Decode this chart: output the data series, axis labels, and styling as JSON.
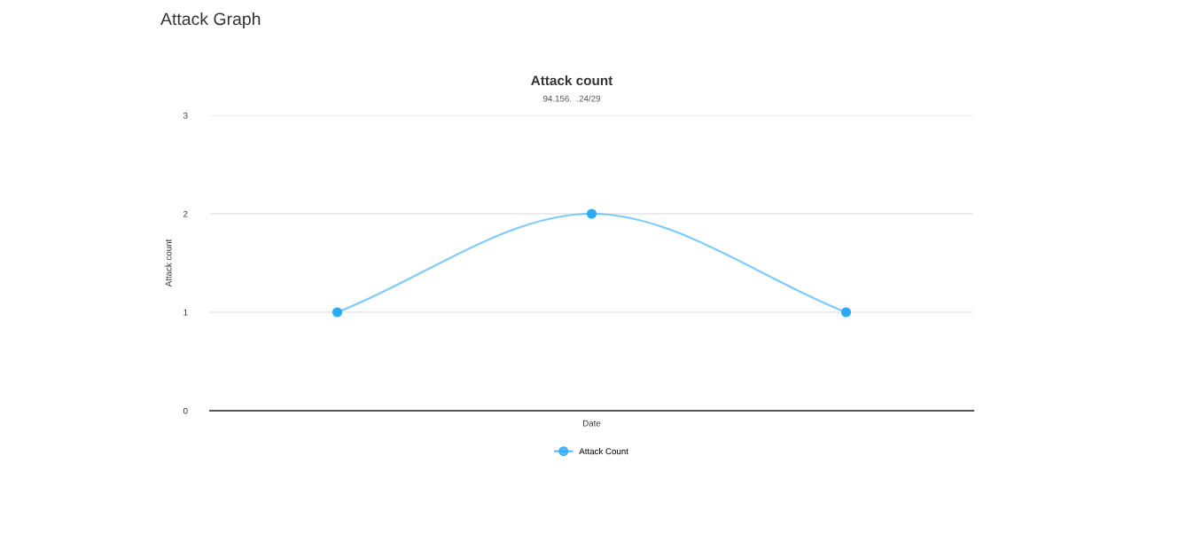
{
  "chart_data": {
    "type": "line",
    "title": "Attack count",
    "subtitle": "94.156.  .24/29",
    "xlabel": "Date",
    "ylabel": "Attack count",
    "annotations": [
      "Attack Graph"
    ],
    "categories": [
      null,
      null,
      null
    ],
    "series": [
      {
        "name": "Attack Count",
        "color": "#2aa9f8",
        "values": [
          1,
          2,
          1
        ]
      }
    ],
    "ylim": [
      0,
      3
    ],
    "yticks": [
      0,
      1,
      2,
      3
    ],
    "grid": "y",
    "legend": "bottom",
    "marker": "circle",
    "line_style": "solid"
  }
}
